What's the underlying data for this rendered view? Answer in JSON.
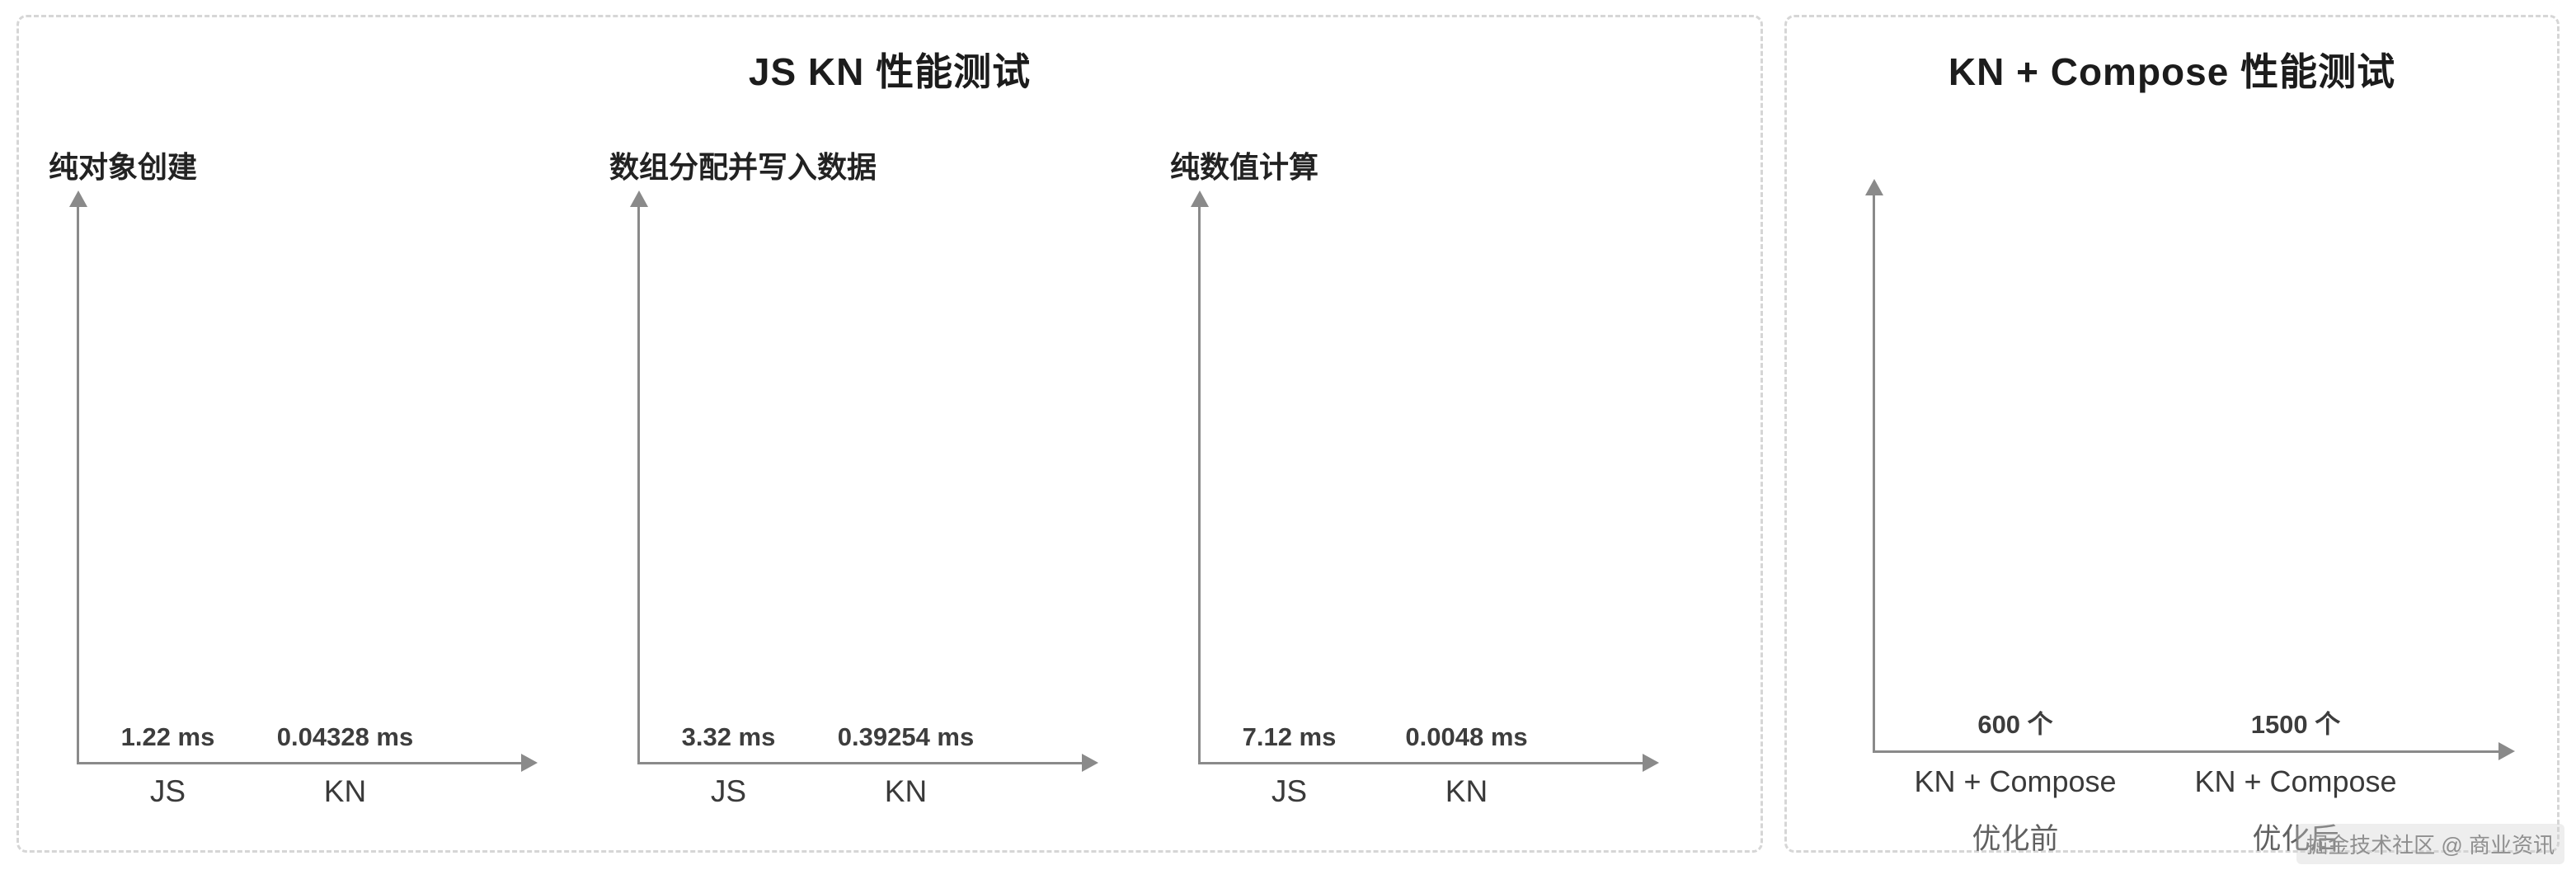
{
  "watermark": "掘金技术社区 @ 商业资讯",
  "left_panel": {
    "title": "JS KN 性能测试"
  },
  "right_panel": {
    "title": "KN + Compose 性能测试"
  },
  "colors": {
    "js_bar_pink": "#F9BCA9",
    "js_bar_red": "#DB7C7F",
    "kn_bar_green": "#A4CE6C",
    "axis_gray": "#8A8A8A"
  },
  "chart_data": [
    {
      "type": "bar",
      "panel": "JS KN 性能测试",
      "title": "纯对象创建",
      "categories": [
        "JS",
        "KN"
      ],
      "values": [
        1.22,
        0.04328
      ],
      "unit": "ms",
      "value_labels": [
        "1.22 ms",
        "0.04328 ms"
      ],
      "bar_colors": [
        "#F9BCA9",
        "#A4CE6C"
      ],
      "bar_height_pct": [
        86,
        3
      ],
      "grid": false,
      "legend": false
    },
    {
      "type": "bar",
      "panel": "JS KN 性能测试",
      "title": "数组分配并写入数据",
      "categories": [
        "JS",
        "KN"
      ],
      "values": [
        3.32,
        0.39254
      ],
      "unit": "ms",
      "value_labels": [
        "3.32 ms",
        "0.39254 ms"
      ],
      "bar_colors": [
        "#F9BCA9",
        "#A4CE6C"
      ],
      "bar_height_pct": [
        95,
        6
      ],
      "grid": false,
      "legend": false
    },
    {
      "type": "bar",
      "panel": "JS KN 性能测试",
      "title": "纯数值计算",
      "categories": [
        "JS",
        "KN"
      ],
      "values": [
        7.12,
        0.0048
      ],
      "unit": "ms",
      "value_labels": [
        "7.12 ms",
        "0.0048 ms"
      ],
      "bar_colors": [
        "#DB7C7F",
        "#A4CE6C"
      ],
      "bar_height_pct": [
        95,
        2
      ],
      "grid": false,
      "legend": false
    },
    {
      "type": "bar",
      "panel": "KN + Compose 性能测试",
      "title": "",
      "categories": [
        "KN + Compose",
        "KN + Compose"
      ],
      "sub_labels": [
        "优化前",
        "优化后"
      ],
      "values": [
        600,
        1500
      ],
      "unit": "个",
      "value_labels": [
        "600 个",
        "1500 个"
      ],
      "bar_colors": [
        "#F9BCA9",
        "#A4CE6C"
      ],
      "bar_height_pct": [
        36,
        92
      ],
      "grid": false,
      "legend": false
    }
  ]
}
